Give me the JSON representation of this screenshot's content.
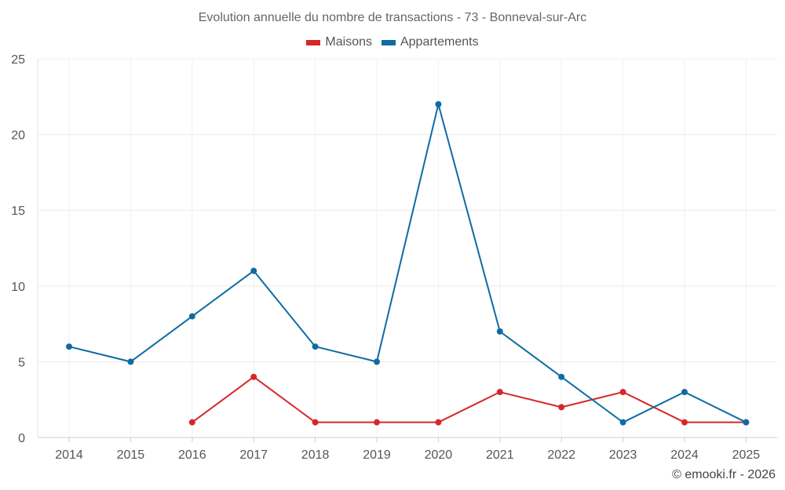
{
  "chart_data": {
    "type": "line",
    "title": "Evolution annuelle du nombre de transactions - 73 - Bonneval-sur-Arc",
    "categories": [
      "2014",
      "2015",
      "2016",
      "2017",
      "2018",
      "2019",
      "2020",
      "2021",
      "2022",
      "2023",
      "2024",
      "2025"
    ],
    "series": [
      {
        "name": "Maisons",
        "color": "#d62728",
        "values": [
          null,
          null,
          1,
          4,
          1,
          1,
          1,
          3,
          2,
          3,
          1,
          1
        ]
      },
      {
        "name": "Appartements",
        "color": "#0f6ba3",
        "values": [
          6,
          5,
          8,
          11,
          6,
          5,
          22,
          7,
          4,
          1,
          3,
          1
        ]
      }
    ],
    "yticks": [
      0,
      5,
      10,
      15,
      20,
      25
    ],
    "ylim": [
      0,
      25
    ],
    "xlabel": "",
    "ylabel": "",
    "grid": true,
    "legend_position": "top-center"
  },
  "credit": "© emooki.fr - 2026"
}
